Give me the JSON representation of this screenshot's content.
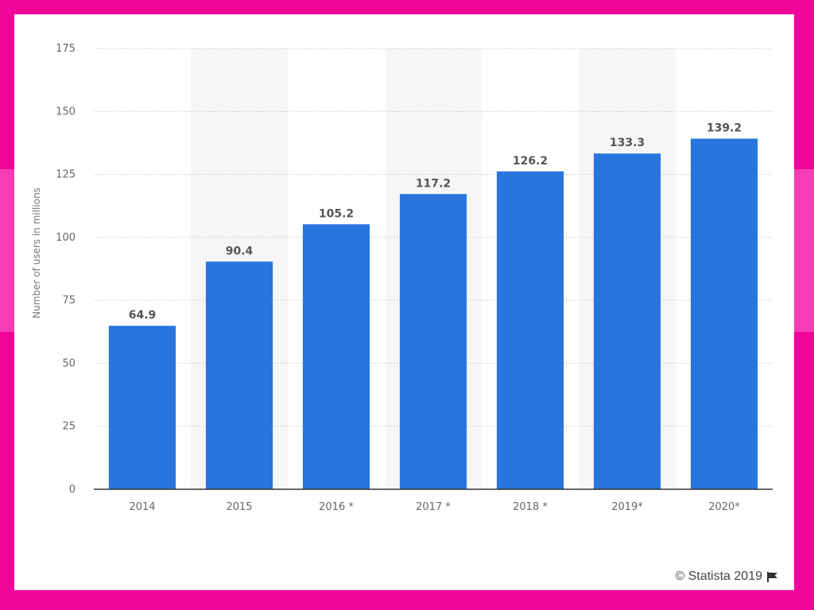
{
  "chart_data": {
    "type": "bar",
    "categories": [
      "2014",
      "2015",
      "2016 *",
      "2017 *",
      "2018 *",
      "2019*",
      "2020*"
    ],
    "values": [
      64.9,
      90.4,
      105.2,
      117.2,
      126.2,
      133.3,
      139.2
    ],
    "value_labels": [
      "64.9",
      "90.4",
      "105.2",
      "117.2",
      "126.2",
      "133.3",
      "139.2"
    ],
    "ylabel": "Number of users in millions",
    "xlabel": "",
    "ylim": [
      0,
      175
    ],
    "yticks": [
      0,
      25,
      50,
      75,
      100,
      125,
      150,
      175
    ],
    "grid": true,
    "bar_color": "#2876dd"
  },
  "credit": "© Statista 2019"
}
